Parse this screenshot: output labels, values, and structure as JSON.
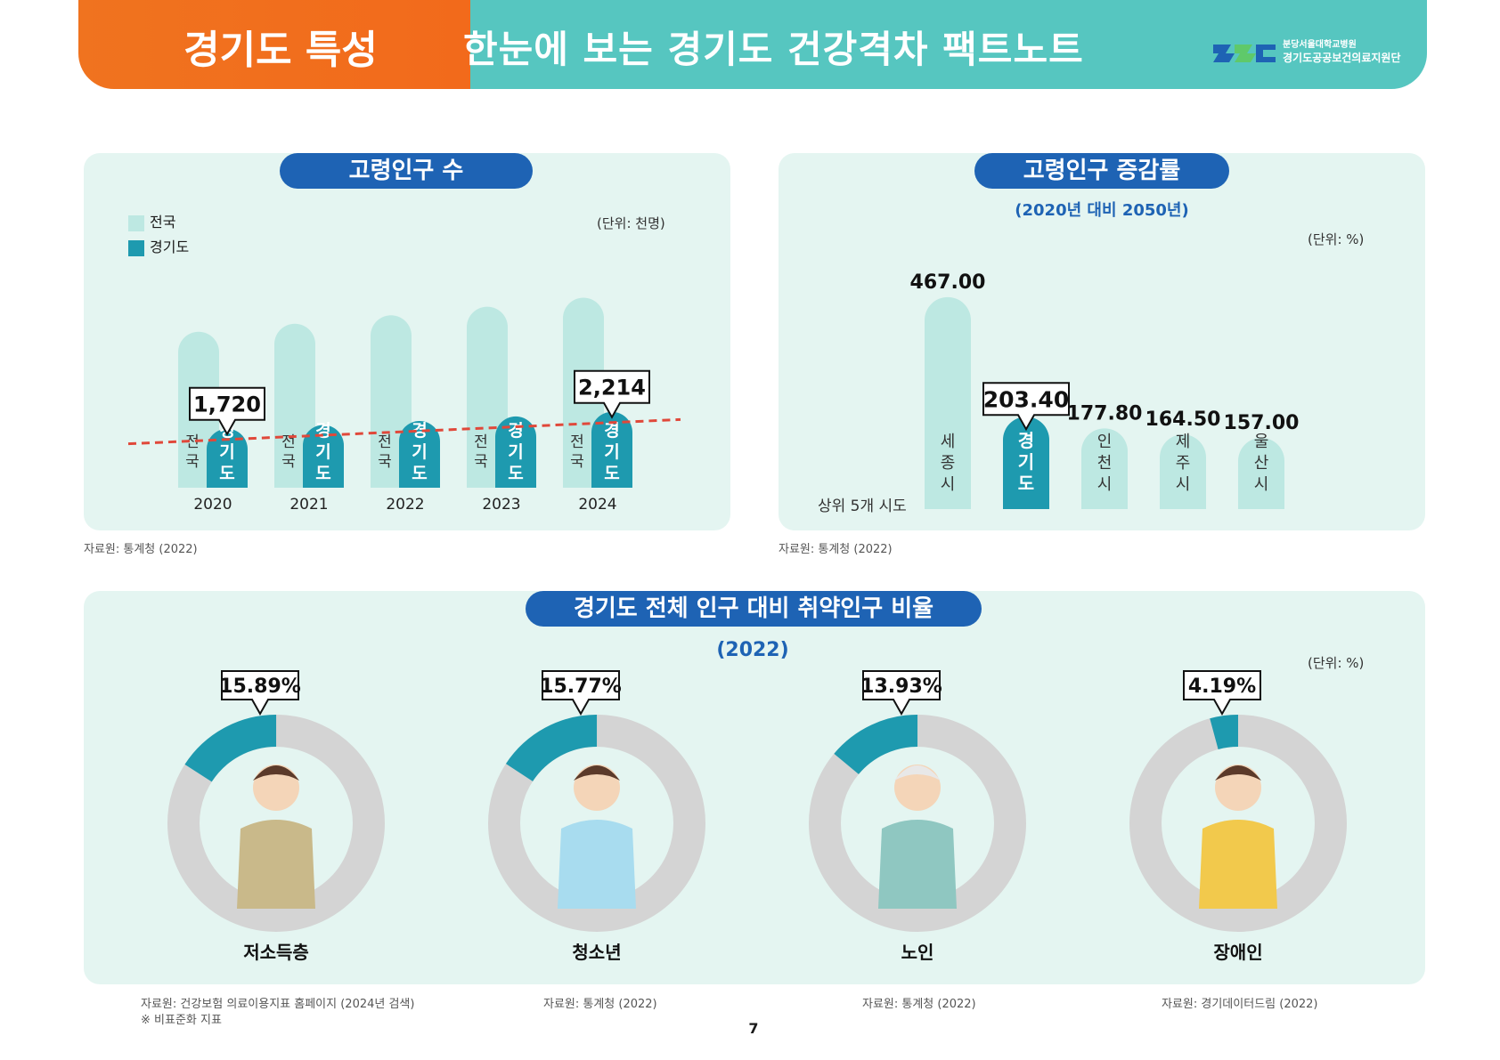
{
  "header": {
    "left_title": "경기도 특성",
    "right_title": "한눈에 보는 경기도 건강격차 팩트노트",
    "org_line1": "분당서울대학교병원",
    "org_line2": "경기도공공보건의료지원단",
    "logo_icon": "org-logo-icon"
  },
  "colors": {
    "orange": "#f0731f",
    "teal_header": "#56c6c0",
    "light_teal": "#bde8e2",
    "dark_teal": "#1e9aaf",
    "blue_pill": "#1e63b4",
    "panel": "#e4f5f1",
    "trend": "#e0483a",
    "donut_gray": "#d4d4d4"
  },
  "panel1": {
    "title": "고령인구 수",
    "unit": "(단위: 천명)",
    "legend": [
      {
        "label": "전국"
      },
      {
        "label": "경기도"
      }
    ],
    "source": "자료원: 통계청 (2022)"
  },
  "panel2": {
    "title": "고령인구 증감률",
    "subtitle": "(2020년 대비 2050년)",
    "unit": "(단위: %)",
    "side_label": "상위 5개 시도",
    "source": "자료원: 통계청 (2022)"
  },
  "panel3": {
    "title": "경기도 전체 인구 대비 취약인구 비율",
    "year": "(2022)",
    "unit": "(단위: %)",
    "sources": [
      "자료원: 건강보험 의료이용지표 홈페이지 (2024년 검색)",
      "자료원: 통계청 (2022)",
      "자료원: 통계청 (2022)",
      "자료원: 경기데이터드림 (2022)"
    ],
    "note": "※ 비표준화 지표"
  },
  "page_number": "7",
  "chart_data": [
    {
      "type": "bar",
      "title": "고령인구 수",
      "categories": [
        "2020",
        "2021",
        "2022",
        "2023",
        "2024"
      ],
      "series": [
        {
          "name": "전국",
          "bar_text": "전국",
          "values": [
            8150,
            8570,
            9010,
            9460,
            9930
          ]
        },
        {
          "name": "경기도",
          "bar_text": "경기도",
          "values": [
            1720,
            1830,
            1950,
            2080,
            2214
          ]
        }
      ],
      "labeled_values": {
        "2020": "1,720",
        "2024": "2,214"
      },
      "trendline": true,
      "unit": "(단위: 천명)"
    },
    {
      "type": "bar",
      "title": "고령인구 증감률",
      "categories": [
        "세종시",
        "경기도",
        "인천시",
        "제주시",
        "울산시"
      ],
      "values": [
        467.0,
        203.4,
        177.8,
        164.5,
        157.0
      ],
      "value_labels": [
        "467.00",
        "203.40",
        "177.80",
        "164.50",
        "157.00"
      ],
      "highlight": "경기도",
      "unit": "(단위: %)"
    },
    {
      "type": "pie",
      "title": "경기도 전체 인구 대비 취약인구 비율",
      "categories": [
        "저소득층",
        "청소년",
        "노인",
        "장애인"
      ],
      "values": [
        15.89,
        15.77,
        13.93,
        4.19
      ],
      "value_labels": [
        "15.89%",
        "15.77%",
        "13.93%",
        "4.19%"
      ],
      "unit": "(단위: %)"
    }
  ]
}
